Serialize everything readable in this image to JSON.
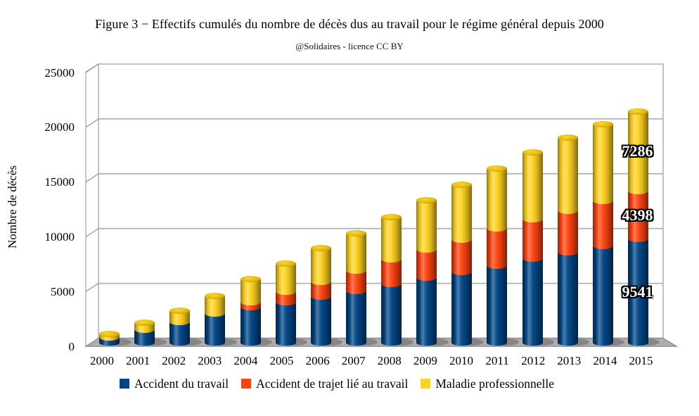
{
  "header": {
    "title": "Figure 3 − Effectifs cumulés du nombre de décès dus au travail pour le régime général depuis 2000",
    "subtitle": "@Solidaires - licence CC BY"
  },
  "chart_data": {
    "type": "bar",
    "stacked": true,
    "style": "3d-cylinder",
    "title": "Figure 3 − Effectifs cumulés du nombre de décès dus au travail pour le régime général depuis 2000",
    "subtitle": "@Solidaires - licence CC BY",
    "xlabel": "",
    "ylabel": "Nombre de décès",
    "ylim": [
      0,
      25000
    ],
    "yticks": [
      0,
      5000,
      10000,
      15000,
      20000,
      25000
    ],
    "grid": true,
    "legend_position": "bottom",
    "categories": [
      "2000",
      "2001",
      "2002",
      "2003",
      "2004",
      "2005",
      "2006",
      "2007",
      "2008",
      "2009",
      "2010",
      "2011",
      "2012",
      "2013",
      "2014",
      "2015"
    ],
    "series": [
      {
        "name": "Accident du travail",
        "color": "#004586",
        "values": [
          560,
          1270,
          1980,
          2760,
          3350,
          3800,
          4310,
          4810,
          5450,
          6030,
          6560,
          7160,
          7770,
          8350,
          8950,
          9541
        ]
      },
      {
        "name": "Accident de trajet lié au travail",
        "color": "#ff420e",
        "values": [
          0,
          0,
          0,
          0,
          450,
          940,
          1350,
          1860,
          2250,
          2570,
          2960,
          3370,
          3580,
          3790,
          4090,
          4398
        ]
      },
      {
        "name": "Maladie professionnelle",
        "color": "#ffd320",
        "values": [
          370,
          710,
          1060,
          1660,
          2120,
          2620,
          3090,
          3480,
          3900,
          4510,
          5020,
          5510,
          6150,
          6720,
          7040,
          7286
        ]
      }
    ],
    "totals": [
      930,
      1980,
      3040,
      4420,
      5920,
      7360,
      8750,
      10150,
      11600,
      13110,
      14540,
      16040,
      17500,
      18860,
      20080,
      21225
    ],
    "annotations": [
      {
        "text": "7286",
        "value": 7286,
        "category": "2015",
        "series": "Maladie professionnelle"
      },
      {
        "text": "4398",
        "value": 4398,
        "category": "2015",
        "series": "Accident de trajet lié au travail"
      },
      {
        "text": "9541",
        "value": 9541,
        "category": "2015",
        "series": "Accident du travail"
      }
    ]
  }
}
